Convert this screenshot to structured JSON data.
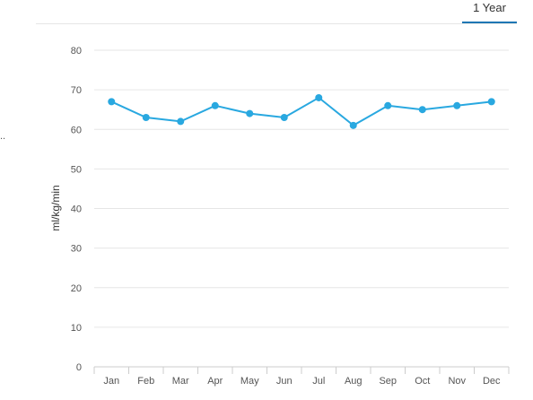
{
  "tabs": [
    {
      "label": "1 Year",
      "active": true
    }
  ],
  "side_mark": "..",
  "chart_data": {
    "type": "line",
    "categories": [
      "Jan",
      "Feb",
      "Mar",
      "Apr",
      "May",
      "Jun",
      "Jul",
      "Aug",
      "Sep",
      "Oct",
      "Nov",
      "Dec"
    ],
    "series": [
      {
        "values": [
          67,
          63,
          62,
          66,
          64,
          63,
          68,
          61,
          66,
          65,
          66,
          67
        ]
      }
    ],
    "ylabel": "ml/kg/min",
    "xlabel": "",
    "ylim": [
      0,
      80
    ],
    "yticks": [
      0,
      10,
      20,
      30,
      40,
      50,
      60,
      70,
      80
    ],
    "grid": true,
    "legend": "none",
    "line_color": "#29a8e0",
    "grid_color": "#e6e6e6",
    "axis_color": "#cccccc"
  }
}
